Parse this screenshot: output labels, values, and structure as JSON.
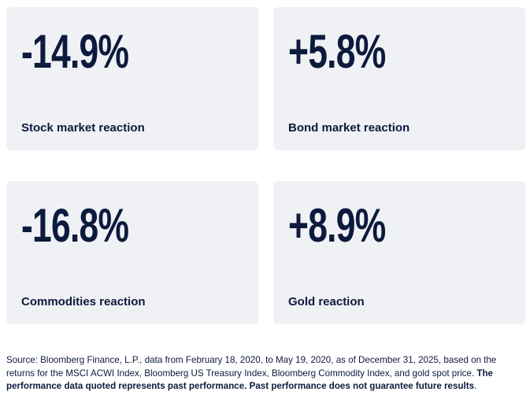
{
  "cards": [
    {
      "value": "-14.9%",
      "label": "Stock market reaction"
    },
    {
      "value": "+5.8%",
      "label": "Bond market reaction"
    },
    {
      "value": "-16.8%",
      "label": "Commodities reaction"
    },
    {
      "value": "+8.9%",
      "label": "Gold reaction"
    }
  ],
  "footnote": {
    "text": "Source: Bloomberg Finance, L.P., data from February 18, 2020, to May 19, 2020, as of December 31, 2025, based on the returns for the MSCI ACWI Index, Bloomberg US Treasury Index, Bloomberg Commodity Index, and gold spot price.",
    "bold": "The performance data quoted represents past performance. Past performance does not guarantee future results",
    "end": "."
  }
}
